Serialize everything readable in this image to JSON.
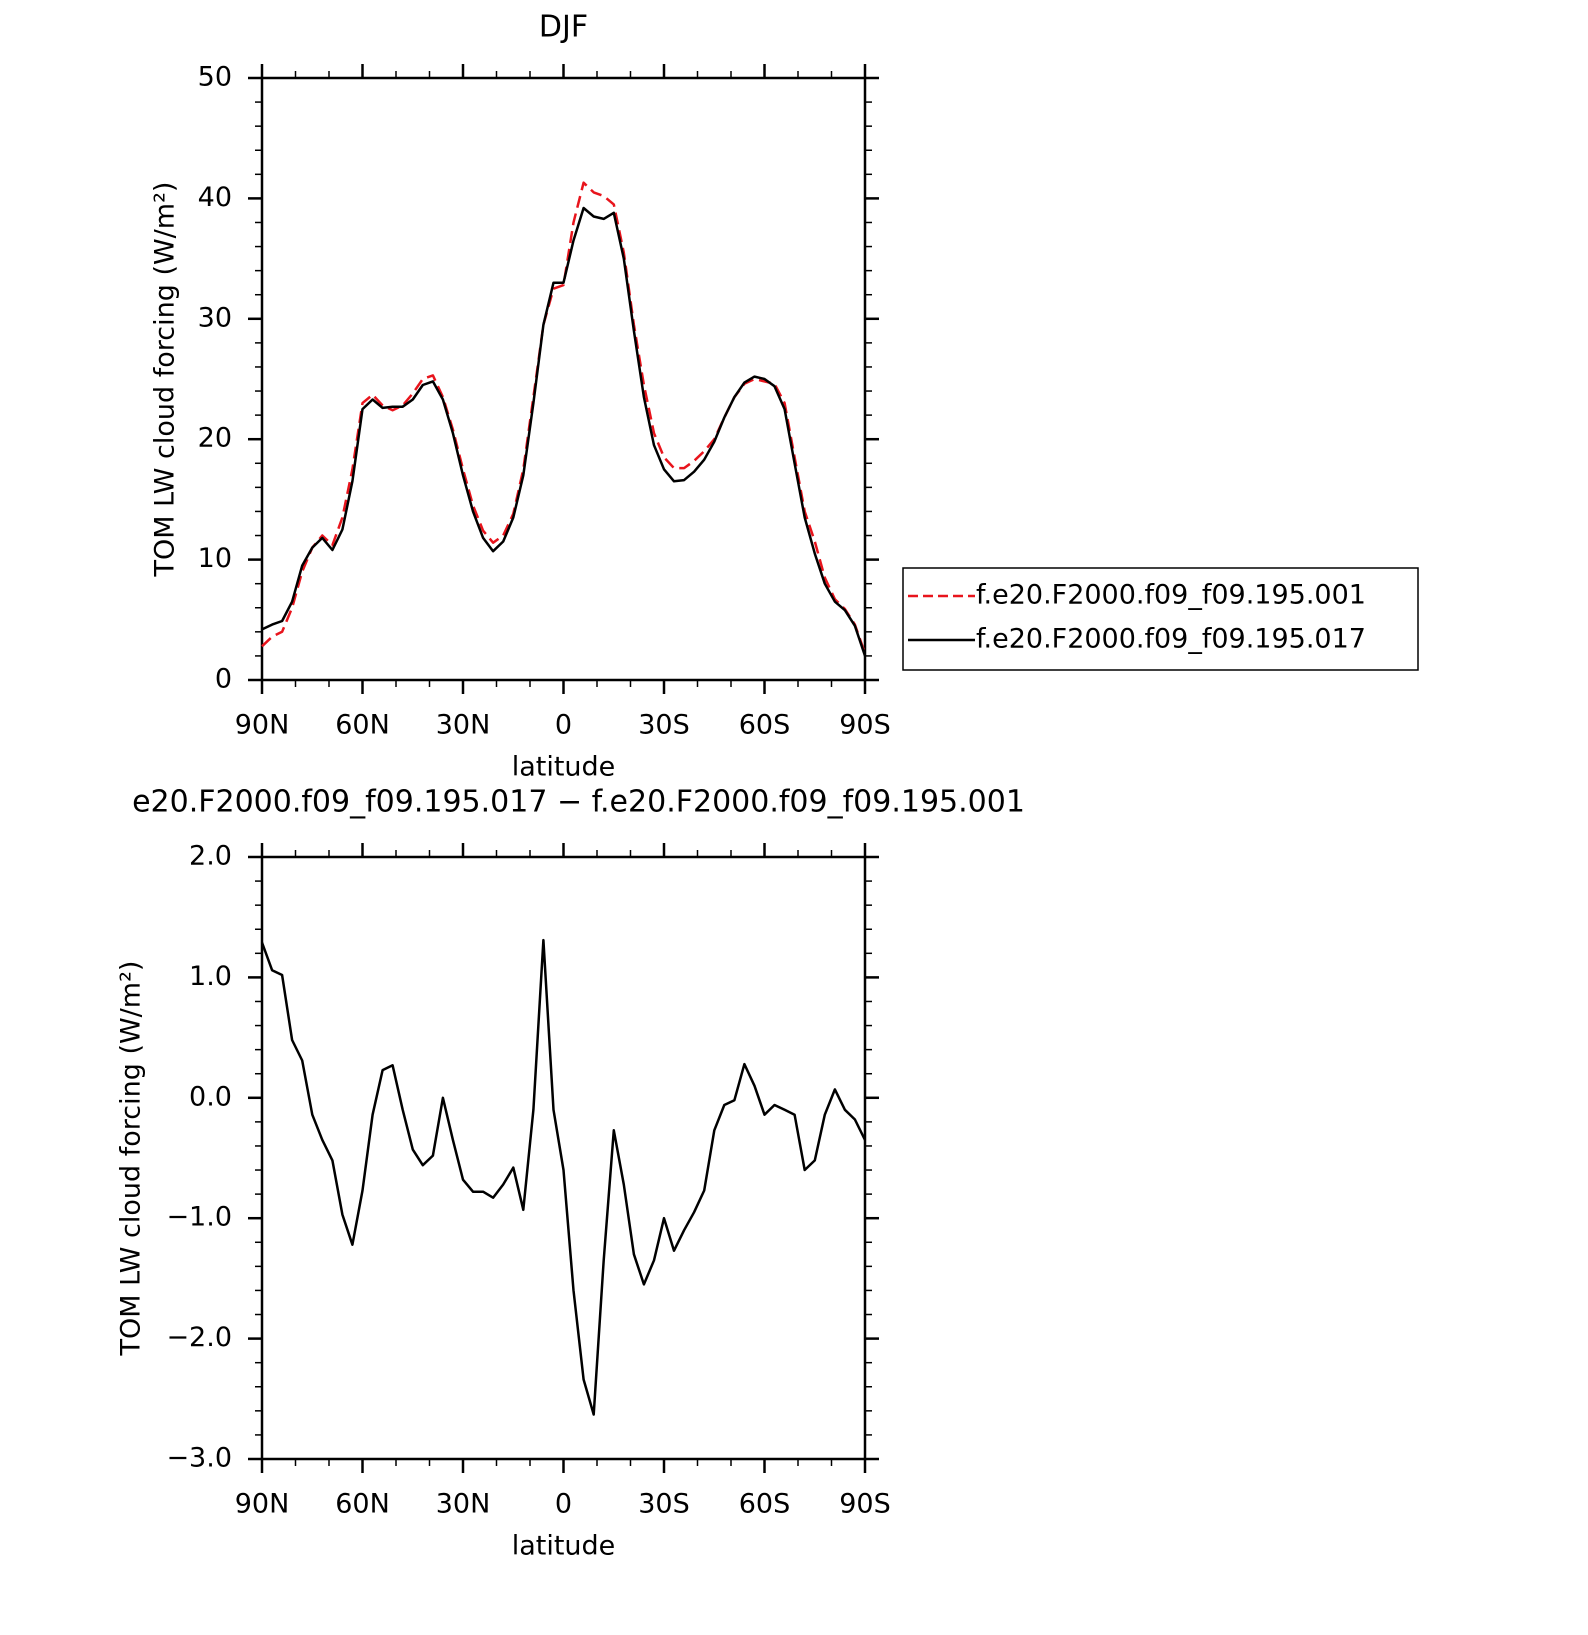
{
  "chart_data": [
    {
      "type": "line",
      "title": "DJF",
      "xlabel": "latitude",
      "ylabel": "TOM LW cloud forcing (W/m²)",
      "x": [
        90,
        87,
        84,
        81,
        78,
        75,
        72,
        69,
        66,
        63,
        60,
        57,
        54,
        51,
        48,
        45,
        42,
        39,
        36,
        33,
        30,
        27,
        24,
        21,
        18,
        15,
        12,
        9,
        6,
        3,
        0,
        -3,
        -6,
        -9,
        -12,
        -15,
        -18,
        -21,
        -24,
        -27,
        -30,
        -33,
        -36,
        -39,
        -42,
        -45,
        -48,
        -51,
        -54,
        -57,
        -60,
        -63,
        -66,
        -69,
        -72,
        -75,
        -78,
        -81,
        -84,
        -87,
        -90
      ],
      "series": [
        {
          "name": "f.e20.F2000.f09_f09.195.001",
          "color": "#e8141c",
          "linestyle": "dashed",
          "values": [
            2.8,
            3.6,
            4.0,
            6.0,
            9.0,
            11.0,
            12.0,
            11.2,
            13.5,
            17.5,
            23.0,
            23.7,
            22.8,
            22.4,
            22.8,
            23.8,
            25.0,
            25.3,
            23.5,
            20.8,
            17.5,
            14.5,
            12.4,
            11.4,
            12.0,
            13.8,
            17.5,
            23.5,
            29.5,
            32.5,
            32.8,
            38.0,
            41.3,
            40.5,
            40.2,
            39.5,
            35.5,
            29.5,
            24.5,
            20.5,
            18.5,
            17.6,
            17.6,
            18.2,
            19.0,
            20.0,
            21.8,
            23.5,
            24.6,
            25.0,
            24.8,
            24.6,
            23.0,
            18.5,
            14.0,
            11.5,
            8.5,
            6.7,
            5.9,
            4.6,
            2.2
          ]
        },
        {
          "name": "f.e20.F2000.f09_f09.195.017",
          "color": "#000000",
          "linestyle": "solid",
          "values": [
            4.2,
            4.6,
            4.9,
            6.5,
            9.5,
            11.0,
            11.8,
            10.8,
            12.5,
            16.5,
            22.5,
            23.3,
            22.6,
            22.7,
            22.7,
            23.3,
            24.5,
            24.8,
            23.3,
            20.5,
            17.0,
            14.0,
            11.8,
            10.7,
            11.5,
            13.5,
            17.0,
            23.0,
            29.5,
            33.0,
            33.0,
            36.5,
            39.2,
            38.5,
            38.3,
            38.8,
            35.0,
            29.0,
            23.5,
            19.5,
            17.5,
            16.5,
            16.6,
            17.3,
            18.3,
            19.8,
            21.8,
            23.5,
            24.7,
            25.2,
            25.0,
            24.4,
            22.5,
            18.0,
            13.5,
            10.5,
            8.0,
            6.5,
            5.8,
            4.5,
            2.0
          ]
        }
      ],
      "xlim": [
        90,
        -90
      ],
      "xticks": [
        {
          "value": 90,
          "label": "90N"
        },
        {
          "value": 60,
          "label": "60N"
        },
        {
          "value": 30,
          "label": "30N"
        },
        0,
        {
          "value": -30,
          "label": "30S"
        },
        {
          "value": -60,
          "label": "60S"
        },
        {
          "value": -90,
          "label": "90S"
        }
      ],
      "xminorticks": [
        80,
        70,
        50,
        40,
        20,
        10,
        -10,
        -20,
        -40,
        -50,
        -70,
        -80
      ],
      "ylim": [
        0,
        50
      ],
      "yticks": [
        0,
        10,
        20,
        30,
        40,
        50
      ],
      "yminorticks": [
        2,
        4,
        6,
        8,
        12,
        14,
        16,
        18,
        22,
        24,
        26,
        28,
        32,
        34,
        36,
        38,
        42,
        44,
        46,
        48
      ],
      "legend": "right"
    },
    {
      "type": "line",
      "title": "e20.F2000.f09_f09.195.017 − f.e20.F2000.f09_f09.195.001",
      "xlabel": "latitude",
      "ylabel": "TOM LW cloud forcing (W/m²)",
      "x": [
        90,
        87,
        84,
        81,
        78,
        75,
        72,
        69,
        66,
        63,
        60,
        57,
        54,
        51,
        48,
        45,
        42,
        39,
        36,
        33,
        30,
        27,
        24,
        21,
        18,
        15,
        12,
        9,
        6,
        3,
        0,
        -3,
        -6,
        -9,
        -12,
        -15,
        -18,
        -21,
        -24,
        -27,
        -30,
        -33,
        -36,
        -39,
        -42,
        -45,
        -48,
        -51,
        -54,
        -57,
        -60,
        -63,
        -66,
        -69,
        -72,
        -75,
        -78,
        -81,
        -84,
        -87,
        -90
      ],
      "color": "#000000",
      "values": [
        1.29,
        1.06,
        1.02,
        0.48,
        0.31,
        -0.14,
        -0.35,
        -0.52,
        -0.97,
        -1.22,
        -0.77,
        -0.14,
        0.23,
        0.27,
        -0.1,
        -0.43,
        -0.56,
        -0.48,
        0.0,
        -0.35,
        -0.68,
        -0.78,
        -0.78,
        -0.83,
        -0.72,
        -0.58,
        -0.93,
        -0.1,
        1.31,
        -0.1,
        -0.6,
        -1.6,
        -2.34,
        -2.63,
        -1.35,
        -0.27,
        -0.72,
        -1.3,
        -1.55,
        -1.35,
        -1.0,
        -1.27,
        -1.1,
        -0.95,
        -0.77,
        -0.27,
        -0.06,
        -0.02,
        0.28,
        0.1,
        -0.14,
        -0.06,
        -0.1,
        -0.14,
        -0.6,
        -0.52,
        -0.14,
        0.07,
        -0.1,
        -0.18,
        -0.35
      ],
      "xlim": [
        90,
        -90
      ],
      "xticks": [
        {
          "value": 90,
          "label": "90N"
        },
        {
          "value": 60,
          "label": "60N"
        },
        {
          "value": 30,
          "label": "30N"
        },
        0,
        {
          "value": -30,
          "label": "30S"
        },
        {
          "value": -60,
          "label": "60S"
        },
        {
          "value": -90,
          "label": "90S"
        }
      ],
      "xminorticks": [
        80,
        70,
        50,
        40,
        20,
        10,
        -10,
        -20,
        -40,
        -50,
        -70,
        -80
      ],
      "ylim": [
        -3,
        2
      ],
      "yticks": [
        {
          "value": -3,
          "label": "−3.0"
        },
        {
          "value": -2,
          "label": "−2.0"
        },
        {
          "value": -1,
          "label": "−1.0"
        },
        {
          "value": 0,
          "label": "0.0"
        },
        {
          "value": 1,
          "label": "1.0"
        },
        {
          "value": 2,
          "label": "2.0"
        }
      ],
      "yminorticks": [
        -2.8,
        -2.6,
        -2.4,
        -2.2,
        -1.8,
        -1.6,
        -1.4,
        -1.2,
        -0.8,
        -0.6,
        -0.4,
        -0.2,
        0.2,
        0.4,
        0.6,
        0.8,
        1.2,
        1.4,
        1.6,
        1.8
      ]
    }
  ]
}
